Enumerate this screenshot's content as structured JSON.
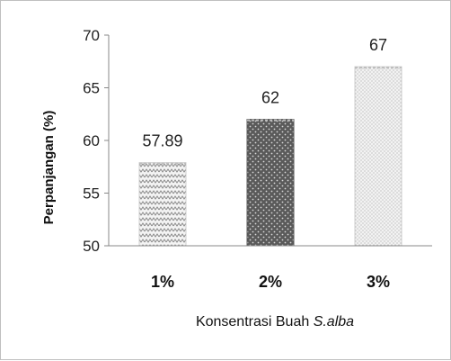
{
  "chart_data": {
    "type": "bar",
    "categories": [
      "1%",
      "2%",
      "3%"
    ],
    "values": [
      57.89,
      62,
      67
    ],
    "data_labels": [
      "57.89",
      "62",
      "67"
    ],
    "ylabel": "Perpanjangan (%)",
    "xlabel_main": "Konsentrasi Buah ",
    "xlabel_italic": "S.alba",
    "ylim": [
      50,
      70
    ],
    "yticks": [
      50,
      55,
      60,
      65,
      70
    ],
    "grid": false,
    "legend": "none",
    "bar_patterns": [
      "zigzag",
      "dark-dots",
      "light-dots"
    ]
  }
}
